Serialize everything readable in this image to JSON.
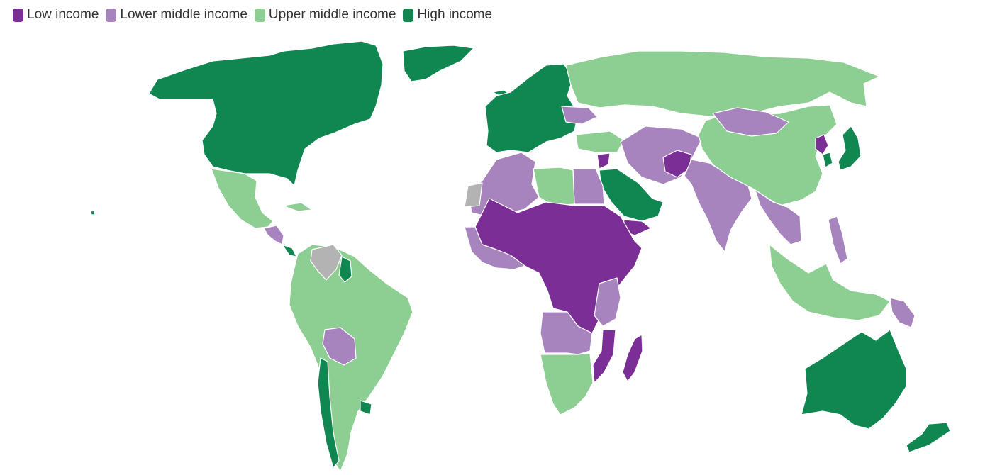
{
  "legend": {
    "items": [
      {
        "label": "Low income",
        "color": "#7a2e96"
      },
      {
        "label": "Lower middle income",
        "color": "#a784bd"
      },
      {
        "label": "Upper middle income",
        "color": "#8dcf92"
      },
      {
        "label": "High income",
        "color": "#108751"
      }
    ]
  },
  "colors": {
    "no_data": "#b3b3b3",
    "border": "#ffffff",
    "background": "#ffffff"
  },
  "regions": [
    {
      "name": "north-america",
      "category": "High income"
    },
    {
      "name": "mexico-central-america",
      "category": "Upper middle income"
    },
    {
      "name": "central-america-lower-middle",
      "category": "Lower middle income"
    },
    {
      "name": "south-america",
      "category": "Upper middle income"
    },
    {
      "name": "bolivia",
      "category": "Lower middle income"
    },
    {
      "name": "chile",
      "category": "High income"
    },
    {
      "name": "uruguay",
      "category": "High income"
    },
    {
      "name": "venezuela",
      "category": "No data"
    },
    {
      "name": "guyana",
      "category": "High income"
    },
    {
      "name": "western-europe",
      "category": "High income"
    },
    {
      "name": "russia",
      "category": "Upper middle income"
    },
    {
      "name": "ukraine",
      "category": "Lower middle income"
    },
    {
      "name": "north-africa",
      "category": "Lower middle income"
    },
    {
      "name": "libya",
      "category": "Upper middle income"
    },
    {
      "name": "western-sahara",
      "category": "No data"
    },
    {
      "name": "sahel-central-africa",
      "category": "Low income"
    },
    {
      "name": "west-africa-coast",
      "category": "Lower middle income"
    },
    {
      "name": "southern-africa",
      "category": "Upper middle income"
    },
    {
      "name": "angola-zambia",
      "category": "Lower middle income"
    },
    {
      "name": "madagascar",
      "category": "Low income"
    },
    {
      "name": "saudi-arabia",
      "category": "High income"
    },
    {
      "name": "yemen",
      "category": "Low income"
    },
    {
      "name": "iran-central-asia",
      "category": "Lower middle income"
    },
    {
      "name": "afghanistan",
      "category": "Low income"
    },
    {
      "name": "india",
      "category": "Lower middle income"
    },
    {
      "name": "china",
      "category": "Upper middle income"
    },
    {
      "name": "mongolia",
      "category": "Lower middle income"
    },
    {
      "name": "north-korea",
      "category": "Low income"
    },
    {
      "name": "japan-korea",
      "category": "High income"
    },
    {
      "name": "southeast-asia",
      "category": "Lower middle income"
    },
    {
      "name": "indonesia-malaysia",
      "category": "Upper middle income"
    },
    {
      "name": "papua-new-guinea",
      "category": "Lower middle income"
    },
    {
      "name": "australia-new-zealand",
      "category": "High income"
    }
  ]
}
